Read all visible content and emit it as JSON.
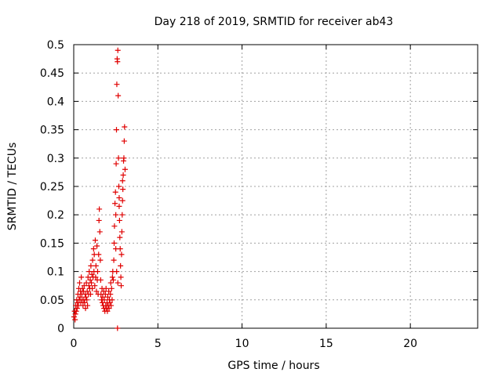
{
  "chart_data": {
    "type": "scatter",
    "title": "Day 218 of 2019, SRMTID for receiver ab43",
    "xlabel": "GPS time / hours",
    "ylabel": "SRMTID / TECUs",
    "xlim": [
      0,
      24
    ],
    "ylim": [
      0,
      0.5
    ],
    "grid": true,
    "marker": "plus",
    "point_color": "#e00000",
    "x_ticks": [
      {
        "value": 0,
        "label": "0"
      },
      {
        "value": 5,
        "label": "5"
      },
      {
        "value": 10,
        "label": "10"
      },
      {
        "value": 15,
        "label": "15"
      },
      {
        "value": 20,
        "label": "20"
      }
    ],
    "y_ticks": [
      {
        "value": 0,
        "label": "0"
      },
      {
        "value": 0.05,
        "label": "0.05"
      },
      {
        "value": 0.1,
        "label": "0.1"
      },
      {
        "value": 0.15,
        "label": "0.15"
      },
      {
        "value": 0.2,
        "label": "0.2"
      },
      {
        "value": 0.25,
        "label": "0.25"
      },
      {
        "value": 0.3,
        "label": "0.3"
      },
      {
        "value": 0.35,
        "label": "0.35"
      },
      {
        "value": 0.4,
        "label": "0.4"
      },
      {
        "value": 0.45,
        "label": "0.45"
      },
      {
        "value": 0.5,
        "label": "0.5"
      }
    ],
    "series": [
      {
        "name": "SRMTID",
        "points": [
          [
            0.02,
            0.02
          ],
          [
            0.05,
            0.03
          ],
          [
            0.08,
            0.015
          ],
          [
            0.1,
            0.025
          ],
          [
            0.12,
            0.04
          ],
          [
            0.15,
            0.03
          ],
          [
            0.18,
            0.05
          ],
          [
            0.2,
            0.035
          ],
          [
            0.22,
            0.045
          ],
          [
            0.25,
            0.06
          ],
          [
            0.28,
            0.04
          ],
          [
            0.3,
            0.07
          ],
          [
            0.32,
            0.05
          ],
          [
            0.35,
            0.08
          ],
          [
            0.38,
            0.055
          ],
          [
            0.4,
            0.065
          ],
          [
            0.42,
            0.045
          ],
          [
            0.45,
            0.09
          ],
          [
            0.48,
            0.06
          ],
          [
            0.5,
            0.05
          ],
          [
            0.52,
            0.07
          ],
          [
            0.55,
            0.04
          ],
          [
            0.58,
            0.065
          ],
          [
            0.6,
            0.05
          ],
          [
            0.62,
            0.075
          ],
          [
            0.65,
            0.045
          ],
          [
            0.68,
            0.06
          ],
          [
            0.7,
            0.035
          ],
          [
            0.72,
            0.055
          ],
          [
            0.75,
            0.08
          ],
          [
            0.78,
            0.05
          ],
          [
            0.8,
            0.065
          ],
          [
            0.82,
            0.04
          ],
          [
            0.85,
            0.09
          ],
          [
            0.88,
            0.06
          ],
          [
            0.9,
            0.075
          ],
          [
            0.92,
            0.1
          ],
          [
            0.95,
            0.07
          ],
          [
            0.98,
            0.085
          ],
          [
            1.0,
            0.06
          ],
          [
            1.02,
            0.11
          ],
          [
            1.05,
            0.08
          ],
          [
            1.08,
            0.095
          ],
          [
            1.1,
            0.07
          ],
          [
            1.12,
            0.12
          ],
          [
            1.15,
            0.09
          ],
          [
            1.18,
            0.14
          ],
          [
            1.2,
            0.1
          ],
          [
            1.22,
            0.13
          ],
          [
            1.25,
            0.075
          ],
          [
            1.28,
            0.155
          ],
          [
            1.3,
            0.09
          ],
          [
            1.32,
            0.11
          ],
          [
            1.35,
            0.065
          ],
          [
            1.38,
            0.145
          ],
          [
            1.4,
            0.085
          ],
          [
            1.42,
            0.1
          ],
          [
            1.45,
            0.06
          ],
          [
            1.48,
            0.13
          ],
          [
            1.5,
            0.19
          ],
          [
            1.52,
            0.21
          ],
          [
            1.55,
            0.17
          ],
          [
            1.58,
            0.12
          ],
          [
            1.6,
            0.085
          ],
          [
            1.62,
            0.06
          ],
          [
            1.65,
            0.05
          ],
          [
            1.68,
            0.07
          ],
          [
            1.7,
            0.045
          ],
          [
            1.72,
            0.055
          ],
          [
            1.75,
            0.04
          ],
          [
            1.78,
            0.065
          ],
          [
            1.8,
            0.035
          ],
          [
            1.82,
            0.05
          ],
          [
            1.85,
            0.03
          ],
          [
            1.88,
            0.06
          ],
          [
            1.9,
            0.04
          ],
          [
            1.92,
            0.07
          ],
          [
            1.95,
            0.035
          ],
          [
            1.98,
            0.045
          ],
          [
            2.0,
            0.03
          ],
          [
            2.02,
            0.055
          ],
          [
            2.05,
            0.04
          ],
          [
            2.08,
            0.065
          ],
          [
            2.1,
            0.035
          ],
          [
            2.12,
            0.05
          ],
          [
            2.15,
            0.045
          ],
          [
            2.18,
            0.06
          ],
          [
            2.2,
            0.08
          ],
          [
            2.22,
            0.04
          ],
          [
            2.25,
            0.07
          ],
          [
            2.28,
            0.05
          ],
          [
            2.3,
            0.09
          ],
          [
            2.32,
            0.1
          ],
          [
            2.35,
            0.085
          ],
          [
            2.38,
            0.12
          ],
          [
            2.4,
            0.15
          ],
          [
            2.42,
            0.18
          ],
          [
            2.45,
            0.22
          ],
          [
            2.48,
            0.24
          ],
          [
            2.5,
            0.2
          ],
          [
            2.52,
            0.29
          ],
          [
            2.54,
            0.35
          ],
          [
            2.56,
            0.43
          ],
          [
            2.58,
            0.475
          ],
          [
            2.6,
            0.47
          ],
          [
            2.62,
            0.49
          ],
          [
            2.64,
            0.41
          ],
          [
            2.66,
            0.3
          ],
          [
            2.68,
            0.25
          ],
          [
            2.7,
            0.215
          ],
          [
            2.72,
            0.19
          ],
          [
            2.74,
            0.16
          ],
          [
            2.76,
            0.14
          ],
          [
            2.78,
            0.11
          ],
          [
            2.8,
            0.09
          ],
          [
            2.82,
            0.075
          ],
          [
            2.84,
            0.13
          ],
          [
            2.86,
            0.17
          ],
          [
            2.88,
            0.2
          ],
          [
            2.9,
            0.225
          ],
          [
            2.92,
            0.245
          ],
          [
            2.94,
            0.27
          ],
          [
            2.96,
            0.295
          ],
          [
            2.98,
            0.3
          ],
          [
            3.0,
            0.33
          ],
          [
            3.02,
            0.355
          ],
          [
            2.6,
            0.0
          ],
          [
            3.05,
            0.28
          ],
          [
            2.9,
            0.26
          ],
          [
            2.7,
            0.23
          ],
          [
            2.5,
            0.14
          ],
          [
            2.55,
            0.1
          ],
          [
            2.62,
            0.08
          ]
        ]
      }
    ]
  }
}
